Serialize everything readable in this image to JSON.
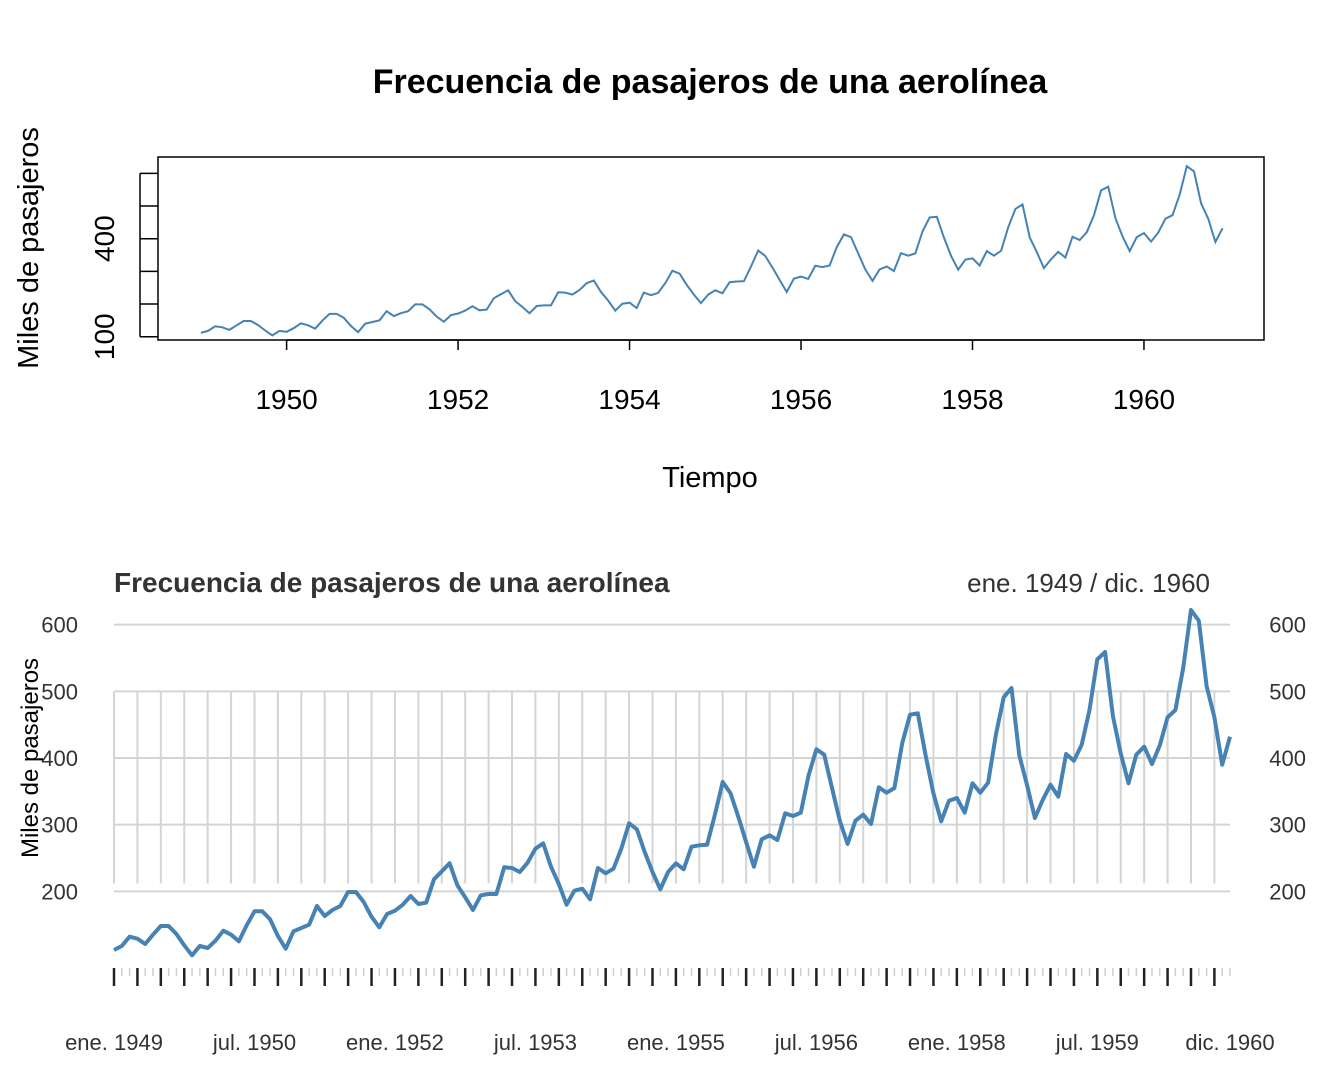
{
  "chart_data": [
    {
      "type": "line",
      "title": "Frecuencia de pasajeros de una aerolínea",
      "xlabel": "Tiempo",
      "ylabel": "Miles de pasajeros",
      "x_start": 1949,
      "x_step": 0.0833333,
      "xlim": [
        1948.5,
        1961.4
      ],
      "ylim": [
        90,
        650
      ],
      "x_ticks": [
        1950,
        1952,
        1954,
        1956,
        1958,
        1960
      ],
      "x_tick_labels": [
        "1950",
        "1952",
        "1954",
        "1956",
        "1958",
        "1960"
      ],
      "y_ticks": [
        100,
        200,
        300,
        400,
        500,
        600
      ],
      "y_tick_labels": [
        "100",
        "",
        "",
        "400",
        "",
        ""
      ],
      "grid": false,
      "color": "#4682B4",
      "series": [
        {
          "values": [
            112,
            118,
            132,
            129,
            121,
            135,
            148,
            148,
            136,
            119,
            104,
            118,
            115,
            126,
            141,
            135,
            125,
            149,
            170,
            170,
            158,
            133,
            114,
            140,
            145,
            150,
            178,
            163,
            172,
            178,
            199,
            199,
            184,
            162,
            146,
            166,
            171,
            180,
            193,
            181,
            183,
            218,
            230,
            242,
            209,
            191,
            172,
            194,
            196,
            196,
            236,
            235,
            229,
            243,
            264,
            272,
            237,
            211,
            180,
            201,
            204,
            188,
            235,
            227,
            234,
            264,
            302,
            293,
            259,
            229,
            203,
            229,
            242,
            233,
            267,
            269,
            270,
            315,
            364,
            347,
            312,
            274,
            237,
            278,
            284,
            277,
            317,
            313,
            318,
            374,
            413,
            405,
            355,
            306,
            271,
            306,
            315,
            301,
            356,
            348,
            355,
            422,
            465,
            467,
            404,
            347,
            305,
            336,
            340,
            318,
            362,
            348,
            363,
            435,
            491,
            505,
            404,
            359,
            310,
            337,
            360,
            342,
            406,
            396,
            420,
            472,
            548,
            559,
            463,
            407,
            362,
            405,
            417,
            391,
            419,
            461,
            472,
            535,
            622,
            606,
            508,
            461,
            390,
            432
          ]
        }
      ]
    },
    {
      "type": "line",
      "title": "Frecuencia de pasajeros de una aerolínea",
      "subtitle": "ene. 1949 / dic. 1960",
      "ylabel": "Miles de pasajeros",
      "ylim": [
        100,
        622
      ],
      "y_ticks": [
        200,
        300,
        400,
        500,
        600
      ],
      "y_tick_labels": [
        "200",
        "300",
        "400",
        "500",
        "600"
      ],
      "x_tick_labels": [
        "ene. 1949",
        "jul. 1950",
        "ene. 1952",
        "jul. 1953",
        "ene. 1955",
        "jul. 1956",
        "ene. 1958",
        "jul. 1959",
        "dic. 1960"
      ],
      "x_tick_months": [
        0,
        18,
        36,
        54,
        72,
        90,
        108,
        126,
        143
      ],
      "grid": true,
      "legend": "none",
      "color": "#4682B4",
      "series": [
        {
          "values": [
            112,
            118,
            132,
            129,
            121,
            135,
            148,
            148,
            136,
            119,
            104,
            118,
            115,
            126,
            141,
            135,
            125,
            149,
            170,
            170,
            158,
            133,
            114,
            140,
            145,
            150,
            178,
            163,
            172,
            178,
            199,
            199,
            184,
            162,
            146,
            166,
            171,
            180,
            193,
            181,
            183,
            218,
            230,
            242,
            209,
            191,
            172,
            194,
            196,
            196,
            236,
            235,
            229,
            243,
            264,
            272,
            237,
            211,
            180,
            201,
            204,
            188,
            235,
            227,
            234,
            264,
            302,
            293,
            259,
            229,
            203,
            229,
            242,
            233,
            267,
            269,
            270,
            315,
            364,
            347,
            312,
            274,
            237,
            278,
            284,
            277,
            317,
            313,
            318,
            374,
            413,
            405,
            355,
            306,
            271,
            306,
            315,
            301,
            356,
            348,
            355,
            422,
            465,
            467,
            404,
            347,
            305,
            336,
            340,
            318,
            362,
            348,
            363,
            435,
            491,
            505,
            404,
            359,
            310,
            337,
            360,
            342,
            406,
            396,
            420,
            472,
            548,
            559,
            463,
            407,
            362,
            405,
            417,
            391,
            419,
            461,
            472,
            535,
            622,
            606,
            508,
            461,
            390,
            432
          ]
        }
      ]
    }
  ]
}
